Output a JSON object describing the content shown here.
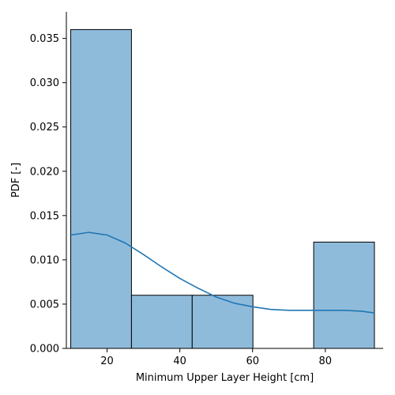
{
  "chart_data": {
    "type": "bar",
    "subtype": "histogram-with-kde",
    "title": "",
    "xlabel": "Minimum Upper Layer Height [cm]",
    "ylabel": "PDF [-]",
    "xlim": [
      8.8,
      95.9
    ],
    "ylim": [
      0,
      0.038
    ],
    "xticks": [
      20,
      40,
      60,
      80
    ],
    "yticks": [
      0.0,
      0.005,
      0.01,
      0.015,
      0.02,
      0.025,
      0.03,
      0.035
    ],
    "ytick_labels": [
      "0.000",
      "0.005",
      "0.010",
      "0.015",
      "0.020",
      "0.025",
      "0.030",
      "0.035"
    ],
    "grid": false,
    "legend": "none",
    "bins": [
      {
        "x0": 10.0,
        "x1": 26.7,
        "value": 0.036
      },
      {
        "x0": 26.7,
        "x1": 43.4,
        "value": 0.006
      },
      {
        "x0": 43.4,
        "x1": 60.1,
        "value": 0.006
      },
      {
        "x0": 60.1,
        "x1": 76.8,
        "value": 0.0
      },
      {
        "x0": 76.8,
        "x1": 93.5,
        "value": 0.012
      }
    ],
    "kde": {
      "x": [
        10,
        15,
        20,
        25,
        30,
        35,
        40,
        45,
        50,
        55,
        60,
        65,
        70,
        75,
        80,
        85,
        90,
        93.5
      ],
      "y": [
        0.0128,
        0.0131,
        0.0128,
        0.0119,
        0.0106,
        0.0092,
        0.0079,
        0.0068,
        0.0058,
        0.0051,
        0.0047,
        0.0044,
        0.0043,
        0.0043,
        0.0043,
        0.0043,
        0.0042,
        0.004
      ]
    },
    "colors": {
      "bar_fill": "#8fbbdb",
      "bar_edge": "#000000",
      "kde_line": "#1f77b4"
    }
  }
}
